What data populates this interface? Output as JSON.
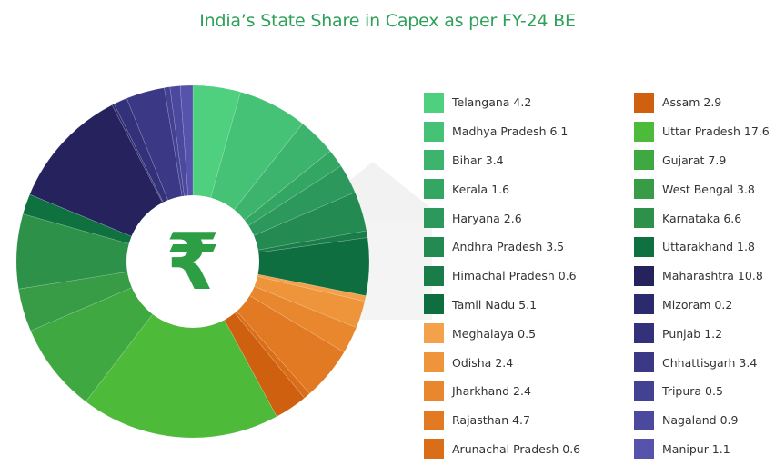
{
  "chart_data": {
    "type": "pie",
    "title": "India’s State Share in Capex as per FY-24 BE",
    "donut_icon": "rupee-icon",
    "icon_glyph": "₹",
    "icon_color": "#2e9e45",
    "start_angle_deg": 0,
    "slices": [
      {
        "label": "Telangana",
        "value": 4.2,
        "color": "#4fd07f"
      },
      {
        "label": "Madhya Pradesh",
        "value": 6.1,
        "color": "#46c276"
      },
      {
        "label": "Bihar",
        "value": 3.4,
        "color": "#3db46d"
      },
      {
        "label": "Kerala",
        "value": 1.6,
        "color": "#34a664"
      },
      {
        "label": "Haryana",
        "value": 2.6,
        "color": "#2c985b"
      },
      {
        "label": "Andhra Pradesh",
        "value": 3.5,
        "color": "#238a52"
      },
      {
        "label": "Himachal Pradesh",
        "value": 0.6,
        "color": "#1a7c49"
      },
      {
        "label": "Tamil Nadu",
        "value": 5.1,
        "color": "#0f6e40"
      },
      {
        "label": "Meghalaya",
        "value": 0.5,
        "color": "#f3a14a"
      },
      {
        "label": "Odisha",
        "value": 2.4,
        "color": "#ee943b"
      },
      {
        "label": "Jharkhand",
        "value": 2.4,
        "color": "#e8872d"
      },
      {
        "label": "Rajasthan",
        "value": 4.7,
        "color": "#e17a22"
      },
      {
        "label": "Arunachal Pradesh",
        "value": 0.6,
        "color": "#d96d18"
      },
      {
        "label": "Assam",
        "value": 2.9,
        "color": "#cf6010"
      },
      {
        "label": "Uttar Pradesh",
        "value": 17.6,
        "color": "#4dba3a"
      },
      {
        "label": "Gujarat",
        "value": 7.9,
        "color": "#40a841"
      },
      {
        "label": "West Bengal",
        "value": 3.8,
        "color": "#379c45"
      },
      {
        "label": "Karnataka",
        "value": 6.6,
        "color": "#2d914a"
      },
      {
        "label": "Uttarakhand",
        "value": 1.8,
        "color": "#0f7040"
      },
      {
        "label": "Maharashtra",
        "value": 10.8,
        "color": "#25225e"
      },
      {
        "label": "Mizoram",
        "value": 0.2,
        "color": "#2c2a6e"
      },
      {
        "label": "Punjab",
        "value": 1.2,
        "color": "#33317a"
      },
      {
        "label": "Chhattisgarh",
        "value": 3.4,
        "color": "#3b3986"
      },
      {
        "label": "Tripura",
        "value": 0.5,
        "color": "#434192"
      },
      {
        "label": "Nagaland",
        "value": 0.9,
        "color": "#4b499e"
      },
      {
        "label": "Manipur",
        "value": 1.1,
        "color": "#5553ab"
      }
    ],
    "legend": {
      "columns": [
        [
          "Telangana 4.2",
          "Madhya Pradesh 6.1",
          "Bihar 3.4",
          "Kerala 1.6",
          "Haryana 2.6",
          "Andhra Pradesh 3.5",
          "Himachal Pradesh 0.6",
          "Tamil Nadu 5.1",
          "Meghalaya 0.5",
          "Odisha 2.4",
          "Jharkhand 2.4",
          "Rajasthan 4.7",
          "Arunachal Pradesh 0.6"
        ],
        [
          "Assam 2.9",
          "Uttar Pradesh 17.6",
          "Gujarat 7.9",
          "West Bengal 3.8",
          "Karnataka 6.6",
          "Uttarakhand 1.8",
          "Maharashtra 10.8",
          "Mizoram 0.2",
          "Punjab 1.2",
          "Chhattisgarh 3.4",
          "Tripura 0.5",
          "Nagaland 0.9",
          "Manipur 1.1"
        ]
      ],
      "placement": "right"
    }
  }
}
